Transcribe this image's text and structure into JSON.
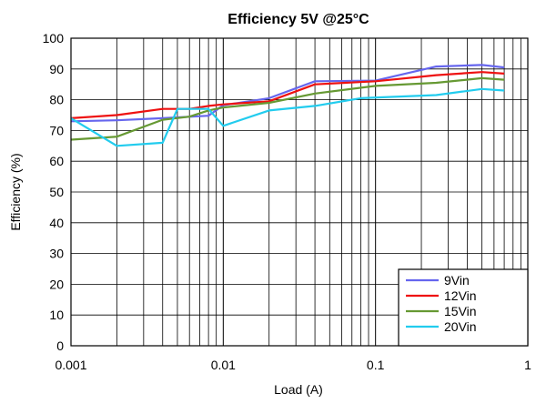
{
  "chart_data": {
    "type": "line",
    "title": "Efficiency 5V @25°C",
    "xlabel": "Load (A)",
    "ylabel": "Efficiency (%)",
    "xscale": "log",
    "xlim": [
      0.001,
      1
    ],
    "ylim": [
      0,
      100
    ],
    "x_ticks": [
      "0.001",
      "0.01",
      "0.1",
      "1"
    ],
    "y_ticks": [
      "0",
      "10",
      "20",
      "30",
      "40",
      "50",
      "60",
      "70",
      "80",
      "90",
      "100"
    ],
    "grid": true,
    "legend_position": "bottom-right",
    "series": [
      {
        "name": "9Vin",
        "color": "#6666ee",
        "x": [
          0.001,
          0.002,
          0.004,
          0.008,
          0.01,
          0.02,
          0.04,
          0.1,
          0.25,
          0.5,
          0.7
        ],
        "y": [
          73,
          73.3,
          74,
          74.8,
          78.2,
          80.5,
          86,
          86.2,
          90.8,
          91.3,
          90.5
        ]
      },
      {
        "name": "12Vin",
        "color": "#ee1111",
        "x": [
          0.001,
          0.002,
          0.004,
          0.006,
          0.008,
          0.01,
          0.02,
          0.04,
          0.1,
          0.25,
          0.5,
          0.7
        ],
        "y": [
          74,
          75,
          77,
          77,
          78,
          78.5,
          79.5,
          85,
          86,
          88,
          89,
          88.5
        ]
      },
      {
        "name": "15Vin",
        "color": "#669933",
        "x": [
          0.001,
          0.002,
          0.004,
          0.006,
          0.008,
          0.01,
          0.02,
          0.04,
          0.1,
          0.25,
          0.5,
          0.7
        ],
        "y": [
          67,
          68,
          73.5,
          74.5,
          76.5,
          77.5,
          79,
          82,
          84.5,
          85.5,
          87,
          86.5
        ]
      },
      {
        "name": "20Vin",
        "color": "#22ccee",
        "x": [
          0.001,
          0.002,
          0.004,
          0.005,
          0.008,
          0.01,
          0.02,
          0.04,
          0.08,
          0.25,
          0.5,
          0.7
        ],
        "y": [
          74,
          65,
          66,
          77,
          77,
          71.5,
          76.5,
          78,
          80.5,
          81.5,
          83.5,
          83
        ]
      }
    ]
  }
}
